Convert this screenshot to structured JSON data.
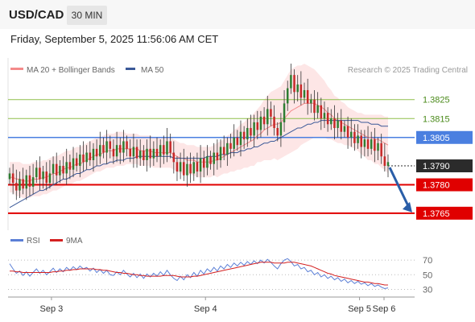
{
  "header": {
    "symbol": "USD/CAD",
    "timeframe": "30 MIN",
    "datetime": "Friday, September 5, 2025 11:56:06 AM CET"
  },
  "legend": {
    "ma20_bb": "MA 20 + Bollinger Bands",
    "ma50": "MA 50",
    "credit": "Research © 2025 Trading Central",
    "rsi": "RSI",
    "rsi_ma": "9MA"
  },
  "colors": {
    "candle_up": "#2e7d32",
    "candle_down": "#c62828",
    "bollinger_fill": "#fde2e2",
    "ma20": "#f48a8a",
    "ma50": "#3b5998",
    "resistance": "#8fbf4a",
    "pivot": "#4a7fe0",
    "support": "#e00000",
    "current": "#2b2b2b",
    "arrow": "#2a5ea8",
    "rsi": "#5b7fd6",
    "rsi_ma": "#d42020"
  },
  "chart_data": {
    "type": "candlestick",
    "title": "USD/CAD 30 MIN",
    "x_ticks": [
      "Sep 3",
      "Sep 4",
      "Sep 5",
      "Sep 6"
    ],
    "ylim": [
      1.3756,
      1.3847
    ],
    "levels": [
      {
        "label": "1.3825",
        "value": 1.3825,
        "kind": "resistance"
      },
      {
        "label": "1.3815",
        "value": 1.3815,
        "kind": "resistance"
      },
      {
        "label": "1.3805",
        "value": 1.3805,
        "kind": "pivot"
      },
      {
        "label": "1.3790",
        "value": 1.379,
        "kind": "current"
      },
      {
        "label": "1.3780",
        "value": 1.378,
        "kind": "support"
      },
      {
        "label": "1.3765",
        "value": 1.3765,
        "kind": "support"
      }
    ],
    "close": [
      1.3786,
      1.3781,
      1.3777,
      1.3783,
      1.3778,
      1.3785,
      1.3779,
      1.3784,
      1.3789,
      1.3783,
      1.3787,
      1.3781,
      1.3786,
      1.3791,
      1.3785,
      1.379,
      1.3786,
      1.3792,
      1.3788,
      1.3794,
      1.379,
      1.3796,
      1.3792,
      1.3797,
      1.3793,
      1.3799,
      1.3795,
      1.3801,
      1.3797,
      1.3803,
      1.3799,
      1.3795,
      1.3801,
      1.3797,
      1.3803,
      1.3799,
      1.3795,
      1.38,
      1.3794,
      1.3798,
      1.3793,
      1.3799,
      1.3794,
      1.3799,
      1.3795,
      1.3801,
      1.3796,
      1.3803,
      1.3797,
      1.3792,
      1.3787,
      1.3792,
      1.3785,
      1.3791,
      1.3786,
      1.3792,
      1.3787,
      1.3794,
      1.3789,
      1.3795,
      1.3791,
      1.3797,
      1.3793,
      1.38,
      1.3796,
      1.3802,
      1.3799,
      1.3805,
      1.3801,
      1.3808,
      1.3804,
      1.381,
      1.3806,
      1.3813,
      1.3809,
      1.3816,
      1.3812,
      1.382,
      1.3816,
      1.381,
      1.3806,
      1.3813,
      1.3823,
      1.3831,
      1.3838,
      1.3829,
      1.3833,
      1.3826,
      1.383,
      1.3823,
      1.3825,
      1.3818,
      1.3822,
      1.3815,
      1.3818,
      1.3812,
      1.3815,
      1.381,
      1.3814,
      1.3808,
      1.3811,
      1.3805,
      1.3808,
      1.3802,
      1.3806,
      1.38,
      1.3804,
      1.3799,
      1.3804,
      1.3798,
      1.3802,
      1.3795,
      1.379,
      1.3792
    ],
    "ma20": [
      1.3784,
      1.3784,
      1.3783,
      1.3783,
      1.3782,
      1.3782,
      1.3782,
      1.3783,
      1.3783,
      1.3783,
      1.3784,
      1.3784,
      1.3785,
      1.3786,
      1.3786,
      1.3787,
      1.3788,
      1.3789,
      1.3789,
      1.379,
      1.3791,
      1.3791,
      1.3792,
      1.3793,
      1.3794,
      1.3795,
      1.3796,
      1.3796,
      1.3797,
      1.3798,
      1.3798,
      1.3798,
      1.3799,
      1.3799,
      1.3799,
      1.3799,
      1.3799,
      1.3799,
      1.3799,
      1.3798,
      1.3798,
      1.3798,
      1.3798,
      1.3797,
      1.3797,
      1.3797,
      1.3797,
      1.3797,
      1.3797,
      1.3796,
      1.3795,
      1.3794,
      1.3794,
      1.3793,
      1.3793,
      1.3793,
      1.3792,
      1.3792,
      1.3792,
      1.3792,
      1.3792,
      1.3793,
      1.3793,
      1.3794,
      1.3795,
      1.3796,
      1.3797,
      1.3798,
      1.3799,
      1.38,
      1.3801,
      1.3802,
      1.3803,
      1.3804,
      1.3806,
      1.3807,
      1.3809,
      1.381,
      1.3811,
      1.3812,
      1.3812,
      1.3813,
      1.3815,
      1.3817,
      1.3819,
      1.382,
      1.3821,
      1.3822,
      1.3823,
      1.3823,
      1.3823,
      1.3823,
      1.3822,
      1.3821,
      1.382,
      1.3818,
      1.3817,
      1.3815,
      1.3814,
      1.3813,
      1.3812,
      1.3811,
      1.381,
      1.3809,
      1.3808,
      1.3807,
      1.3806,
      1.3805,
      1.3805,
      1.3804,
      1.3804,
      1.3803,
      1.3802,
      1.3801
    ],
    "ma50": [
      1.3768,
      1.3769,
      1.377,
      1.3771,
      1.3772,
      1.3773,
      1.3774,
      1.3775,
      1.3776,
      1.3777,
      1.3777,
      1.3778,
      1.3779,
      1.378,
      1.3781,
      1.3782,
      1.3783,
      1.3783,
      1.3784,
      1.3785,
      1.3786,
      1.3786,
      1.3787,
      1.3788,
      1.3788,
      1.3789,
      1.379,
      1.379,
      1.3791,
      1.3791,
      1.3792,
      1.3792,
      1.3793,
      1.3793,
      1.3793,
      1.3794,
      1.3794,
      1.3794,
      1.3795,
      1.3795,
      1.3795,
      1.3795,
      1.3795,
      1.3795,
      1.3795,
      1.3795,
      1.3795,
      1.3795,
      1.3795,
      1.3794,
      1.3794,
      1.3794,
      1.3794,
      1.3794,
      1.3794,
      1.3794,
      1.3794,
      1.3794,
      1.3794,
      1.3795,
      1.3795,
      1.3795,
      1.3795,
      1.3796,
      1.3796,
      1.3796,
      1.3797,
      1.3797,
      1.3797,
      1.3798,
      1.3798,
      1.3799,
      1.3799,
      1.38,
      1.38,
      1.3801,
      1.3802,
      1.3802,
      1.3803,
      1.3803,
      1.3804,
      1.3805,
      1.3806,
      1.3807,
      1.3808,
      1.3809,
      1.381,
      1.381,
      1.3811,
      1.3812,
      1.3812,
      1.3813,
      1.3813,
      1.3814,
      1.3814,
      1.3814,
      1.3814,
      1.3814,
      1.3814,
      1.3814,
      1.3814,
      1.3814,
      1.3814,
      1.3814,
      1.3814,
      1.3813,
      1.3813,
      1.3813,
      1.3812,
      1.3812,
      1.3812,
      1.3811,
      1.3811,
      1.3811
    ],
    "bb_width": [
      0.0008,
      0.0008,
      0.0009,
      0.0009,
      0.0009,
      0.0009,
      0.0009,
      0.0009,
      0.0009,
      0.0009,
      0.0009,
      0.0009,
      0.0009,
      0.0009,
      0.0009,
      0.0009,
      0.0009,
      0.0009,
      0.0009,
      0.0009,
      0.0009,
      0.0009,
      0.0009,
      0.0009,
      0.0009,
      0.0009,
      0.0009,
      0.0009,
      0.0009,
      0.0009,
      0.0009,
      0.0009,
      0.0009,
      0.0009,
      0.0009,
      0.0008,
      0.0008,
      0.0008,
      0.0008,
      0.0008,
      0.0008,
      0.0008,
      0.0008,
      0.0008,
      0.0008,
      0.0008,
      0.0008,
      0.0008,
      0.0008,
      0.0008,
      0.0008,
      0.0008,
      0.0008,
      0.0008,
      0.0008,
      0.0008,
      0.0008,
      0.0008,
      0.0008,
      0.0008,
      0.0008,
      0.0008,
      0.0009,
      0.0009,
      0.0009,
      0.001,
      0.001,
      0.0011,
      0.0011,
      0.0012,
      0.0012,
      0.0013,
      0.0013,
      0.0014,
      0.0014,
      0.0015,
      0.0016,
      0.0017,
      0.0018,
      0.0018,
      0.0019,
      0.0019,
      0.002,
      0.0021,
      0.0022,
      0.0022,
      0.0022,
      0.0021,
      0.0021,
      0.002,
      0.0019,
      0.0018,
      0.0017,
      0.0016,
      0.0015,
      0.0014,
      0.0013,
      0.0012,
      0.0012,
      0.0011,
      0.0011,
      0.001,
      0.001,
      0.001,
      0.001,
      0.0011,
      0.0011,
      0.0012,
      0.0012,
      0.0013,
      0.0013,
      0.0014,
      0.0014,
      0.0015
    ],
    "projection": {
      "from": 1.379,
      "to": 1.3765
    },
    "rsi": {
      "levels": [
        70,
        50,
        30
      ],
      "ylim": [
        25,
        80
      ],
      "rsi": [
        65,
        58,
        52,
        55,
        49,
        54,
        48,
        53,
        58,
        52,
        56,
        50,
        54,
        59,
        53,
        58,
        54,
        60,
        56,
        61,
        57,
        62,
        58,
        60,
        55,
        59,
        53,
        57,
        52,
        56,
        50,
        49,
        54,
        50,
        56,
        51,
        47,
        52,
        46,
        51,
        45,
        51,
        47,
        52,
        48,
        54,
        49,
        56,
        50,
        45,
        42,
        48,
        43,
        50,
        46,
        53,
        48,
        56,
        51,
        58,
        54,
        60,
        55,
        62,
        58,
        64,
        60,
        66,
        62,
        67,
        63,
        68,
        64,
        69,
        65,
        70,
        66,
        71,
        67,
        62,
        58,
        65,
        70,
        72,
        68,
        62,
        64,
        58,
        60,
        54,
        56,
        50,
        53,
        47,
        50,
        45,
        48,
        43,
        46,
        41,
        44,
        39,
        42,
        38,
        41,
        37,
        39,
        35,
        38,
        34,
        36,
        33,
        31,
        32
      ],
      "ma9": [
        55,
        55,
        54,
        54,
        53,
        53,
        53,
        53,
        53,
        53,
        53,
        53,
        53,
        54,
        54,
        55,
        55,
        56,
        56,
        57,
        57,
        58,
        58,
        58,
        58,
        58,
        57,
        57,
        56,
        56,
        55,
        54,
        53,
        53,
        52,
        52,
        51,
        50,
        50,
        49,
        49,
        48,
        48,
        48,
        48,
        48,
        49,
        49,
        49,
        49,
        48,
        47,
        47,
        47,
        47,
        48,
        48,
        49,
        50,
        51,
        52,
        53,
        54,
        55,
        56,
        57,
        58,
        59,
        60,
        61,
        62,
        63,
        64,
        65,
        66,
        67,
        67,
        67,
        67,
        66,
        66,
        66,
        66,
        67,
        67,
        67,
        66,
        65,
        64,
        63,
        62,
        60,
        58,
        56,
        54,
        52,
        51,
        49,
        48,
        47,
        46,
        45,
        44,
        43,
        42,
        41,
        40,
        40,
        39,
        38,
        38,
        37,
        36,
        36
      ]
    }
  }
}
